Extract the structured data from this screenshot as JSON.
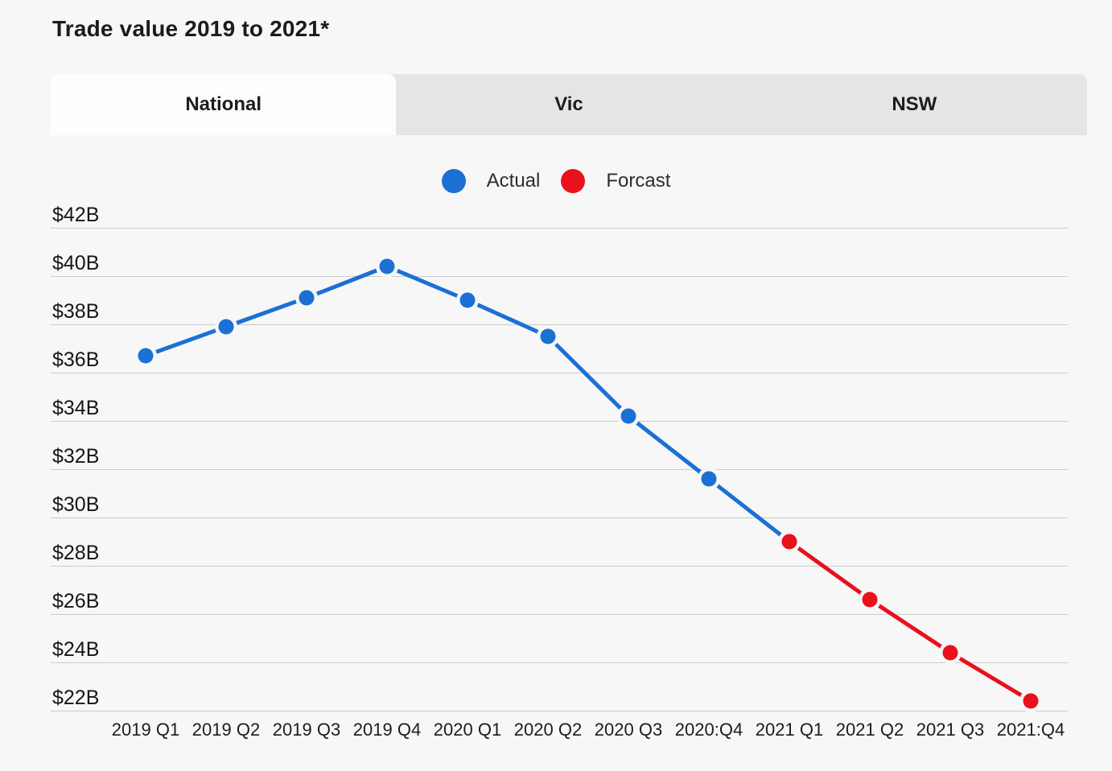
{
  "page": {
    "title": "Trade value 2019 to 2021*"
  },
  "tabs": [
    {
      "label": "National",
      "active": true
    },
    {
      "label": "Vic",
      "active": false
    },
    {
      "label": "NSW",
      "active": false
    }
  ],
  "legend": [
    {
      "label": "Actual",
      "color": "#1b70d4"
    },
    {
      "label": "Forcast",
      "color": "#e8111c"
    }
  ],
  "colors": {
    "background": "#f7f7f7",
    "tabbar": "#e5e5e5",
    "active_tab": "#fdfdfd",
    "gridline": "#cbcbcb",
    "actual": "#1b70d4",
    "forecast": "#e8111c"
  },
  "chart_data": {
    "type": "line",
    "title": "Trade value 2019 to 2021*",
    "categories": [
      "2019 Q1",
      "2019 Q2",
      "2019 Q3",
      "2019 Q4",
      "2020 Q1",
      "2020 Q2",
      "2020 Q3",
      "2020:Q4",
      "2021 Q1",
      "2021 Q2",
      "2021 Q3",
      "2021:Q4"
    ],
    "series": [
      {
        "name": "Actual",
        "color": "#1b70d4",
        "start_index": 0,
        "values": [
          36.7,
          37.9,
          39.1,
          40.4,
          39.0,
          37.5,
          34.2,
          31.6,
          29.0
        ]
      },
      {
        "name": "Forcast",
        "color": "#e8111c",
        "start_index": 8,
        "values": [
          29.0,
          26.6,
          24.4,
          22.4
        ]
      }
    ],
    "ytick_labels": [
      "$42B",
      "$40B",
      "$38B",
      "$36B",
      "$34B",
      "$32B",
      "$30B",
      "$28B",
      "$26B",
      "$24B",
      "$22B"
    ],
    "ylim": [
      22,
      42
    ],
    "ytick_step": 2,
    "xlabel": "",
    "ylabel": "",
    "grid": true,
    "legend_position": "top-center"
  }
}
